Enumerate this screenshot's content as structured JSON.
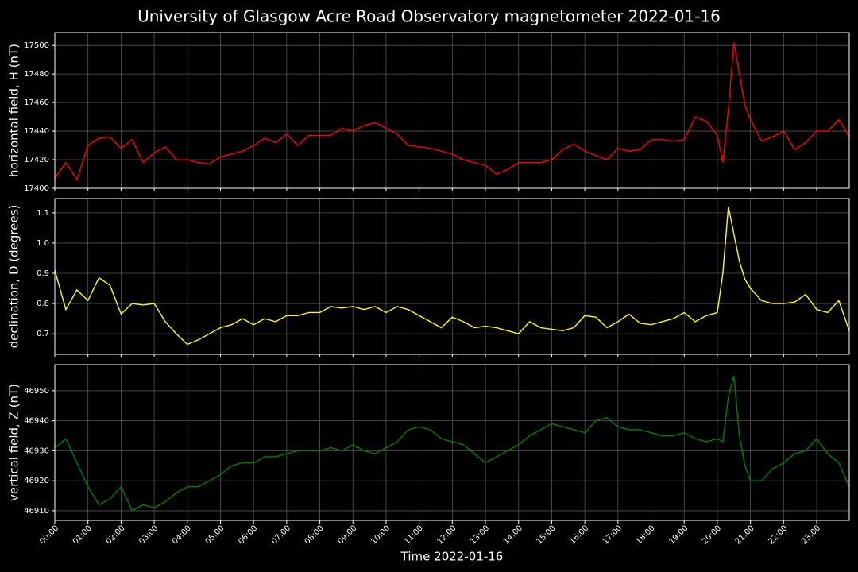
{
  "title": "University of Glasgow Acre Road Observatory magnetometer 2022-01-16",
  "chart_data": [
    {
      "type": "line",
      "ylabel": "horizontal field, H (nT)",
      "color": "#ff0000",
      "grid": true,
      "xlim": [
        "00:00",
        "23:59"
      ],
      "ylim": [
        17400,
        17509
      ],
      "yticks": [
        17400,
        17420,
        17440,
        17460,
        17480,
        17500
      ],
      "x": [
        "00:00",
        "00:20",
        "00:40",
        "01:00",
        "01:20",
        "01:40",
        "02:00",
        "02:20",
        "02:40",
        "03:00",
        "03:20",
        "03:40",
        "04:00",
        "04:20",
        "04:40",
        "05:00",
        "05:20",
        "05:40",
        "06:00",
        "06:20",
        "06:40",
        "07:00",
        "07:20",
        "07:40",
        "08:00",
        "08:20",
        "08:40",
        "09:00",
        "09:20",
        "09:40",
        "10:00",
        "10:20",
        "10:40",
        "11:00",
        "11:20",
        "11:40",
        "12:00",
        "12:20",
        "12:40",
        "13:00",
        "13:20",
        "13:40",
        "14:00",
        "14:20",
        "14:40",
        "15:00",
        "15:20",
        "15:40",
        "16:00",
        "16:20",
        "16:40",
        "17:00",
        "17:20",
        "17:40",
        "18:00",
        "18:20",
        "18:40",
        "19:00",
        "19:20",
        "19:40",
        "20:00",
        "20:10",
        "20:20",
        "20:30",
        "20:40",
        "20:50",
        "21:00",
        "21:20",
        "21:40",
        "22:00",
        "22:20",
        "22:40",
        "23:00",
        "23:20",
        "23:40",
        "23:59"
      ],
      "values": [
        17407,
        17418,
        17406,
        17430,
        17435,
        17436,
        17428,
        17434,
        17418,
        17425,
        17429,
        17420,
        17420,
        17418,
        17417,
        17422,
        17424,
        17426,
        17430,
        17435,
        17432,
        17438,
        17430,
        17437,
        17437,
        17437,
        17442,
        17440,
        17444,
        17446,
        17442,
        17438,
        17430,
        17429,
        17428,
        17426,
        17424,
        17420,
        17418,
        17416,
        17410,
        17413,
        17418,
        17418,
        17418,
        17420,
        17427,
        17431,
        17426,
        17423,
        17420,
        17428,
        17426,
        17427,
        17434,
        17434,
        17433,
        17434,
        17450,
        17447,
        17437,
        17418,
        17455,
        17502,
        17480,
        17458,
        17448,
        17433,
        17436,
        17440,
        17427,
        17432,
        17440,
        17440,
        17448,
        17436
      ]
    },
    {
      "type": "line",
      "ylabel": "declination, D (degrees)",
      "color": "#ffff00",
      "grid": true,
      "xlim": [
        "00:00",
        "23:59"
      ],
      "ylim": [
        0.632,
        1.147
      ],
      "yticks": [
        0.7,
        0.8,
        0.9,
        {
          "value": 1,
          "label": "1.0"
        },
        1.1
      ],
      "x": [
        "00:00",
        "00:20",
        "00:40",
        "01:00",
        "01:20",
        "01:40",
        "02:00",
        "02:20",
        "02:40",
        "03:00",
        "03:20",
        "03:40",
        "04:00",
        "04:20",
        "04:40",
        "05:00",
        "05:20",
        "05:40",
        "06:00",
        "06:20",
        "06:40",
        "07:00",
        "07:20",
        "07:40",
        "08:00",
        "08:20",
        "08:40",
        "09:00",
        "09:20",
        "09:40",
        "10:00",
        "10:20",
        "10:40",
        "11:00",
        "11:20",
        "11:40",
        "12:00",
        "12:20",
        "12:40",
        "13:00",
        "13:20",
        "13:40",
        "14:00",
        "14:20",
        "14:40",
        "15:00",
        "15:20",
        "15:40",
        "16:00",
        "16:20",
        "16:40",
        "17:00",
        "17:20",
        "17:40",
        "18:00",
        "18:20",
        "18:40",
        "19:00",
        "19:20",
        "19:40",
        "20:00",
        "20:10",
        "20:20",
        "20:30",
        "20:40",
        "20:50",
        "21:00",
        "21:20",
        "21:40",
        "22:00",
        "22:20",
        "22:40",
        "23:00",
        "23:20",
        "23:40",
        "23:59"
      ],
      "values": [
        0.91,
        0.78,
        0.845,
        0.81,
        0.885,
        0.86,
        0.765,
        0.8,
        0.795,
        0.8,
        0.74,
        0.7,
        0.665,
        0.68,
        0.7,
        0.72,
        0.73,
        0.75,
        0.73,
        0.75,
        0.74,
        0.76,
        0.76,
        0.77,
        0.77,
        0.79,
        0.785,
        0.79,
        0.78,
        0.79,
        0.77,
        0.79,
        0.78,
        0.76,
        0.74,
        0.72,
        0.755,
        0.74,
        0.72,
        0.725,
        0.72,
        0.71,
        0.7,
        0.74,
        0.72,
        0.715,
        0.71,
        0.72,
        0.76,
        0.755,
        0.72,
        0.74,
        0.765,
        0.735,
        0.73,
        0.74,
        0.75,
        0.77,
        0.74,
        0.76,
        0.77,
        0.9,
        1.12,
        1.03,
        0.94,
        0.88,
        0.85,
        0.81,
        0.8,
        0.8,
        0.805,
        0.83,
        0.78,
        0.77,
        0.81,
        0.71
      ]
    },
    {
      "type": "line",
      "ylabel": "vertical field, Z (nT)",
      "xlabel": "Time 2022-01-16",
      "color": "#008000",
      "grid": true,
      "xlim": [
        "00:00",
        "23:59"
      ],
      "ylim": [
        46906.8,
        46958.7
      ],
      "yticks": [
        46910,
        46920,
        46930,
        46940,
        46950
      ],
      "xticks": [
        "00:00",
        "01:00",
        "02:00",
        "03:00",
        "04:00",
        "05:00",
        "06:00",
        "07:00",
        "08:00",
        "09:00",
        "10:00",
        "11:00",
        "12:00",
        "13:00",
        "14:00",
        "15:00",
        "16:00",
        "17:00",
        "18:00",
        "19:00",
        "20:00",
        "21:00",
        "22:00",
        "23:00"
      ],
      "x": [
        "00:00",
        "00:20",
        "00:40",
        "01:00",
        "01:20",
        "01:40",
        "02:00",
        "02:20",
        "02:40",
        "03:00",
        "03:20",
        "03:40",
        "04:00",
        "04:20",
        "04:40",
        "05:00",
        "05:20",
        "05:40",
        "06:00",
        "06:20",
        "06:40",
        "07:00",
        "07:20",
        "07:40",
        "08:00",
        "08:20",
        "08:40",
        "09:00",
        "09:20",
        "09:40",
        "10:00",
        "10:20",
        "10:40",
        "11:00",
        "11:20",
        "11:40",
        "12:00",
        "12:20",
        "12:40",
        "13:00",
        "13:20",
        "13:40",
        "14:00",
        "14:20",
        "14:40",
        "15:00",
        "15:20",
        "15:40",
        "16:00",
        "16:20",
        "16:40",
        "17:00",
        "17:20",
        "17:40",
        "18:00",
        "18:20",
        "18:40",
        "19:00",
        "19:20",
        "19:40",
        "20:00",
        "20:10",
        "20:20",
        "20:30",
        "20:40",
        "20:50",
        "21:00",
        "21:20",
        "21:40",
        "22:00",
        "22:20",
        "22:40",
        "23:00",
        "23:20",
        "23:40",
        "23:59"
      ],
      "values": [
        46931,
        46934,
        46926,
        46918,
        46912,
        46914,
        46918,
        46910,
        46912,
        46911,
        46913,
        46916,
        46918,
        46918,
        46920,
        46922,
        46925,
        46926,
        46926,
        46928,
        46928,
        46929,
        46930,
        46930,
        46930,
        46931,
        46930,
        46932,
        46930,
        46929,
        46931,
        46933,
        46937,
        46938,
        46937,
        46934,
        46933,
        46932,
        46929,
        46926,
        46928,
        46930,
        46932,
        46935,
        46937,
        46939,
        46938,
        46937,
        46936,
        46940,
        46941,
        46938,
        46937,
        46937,
        46936,
        46935,
        46935,
        46936,
        46934,
        46933,
        46934,
        46933,
        46948,
        46955,
        46935,
        46925,
        46920,
        46920,
        46924,
        46926,
        46929,
        46930,
        46934,
        46929,
        46926,
        46918
      ]
    }
  ]
}
